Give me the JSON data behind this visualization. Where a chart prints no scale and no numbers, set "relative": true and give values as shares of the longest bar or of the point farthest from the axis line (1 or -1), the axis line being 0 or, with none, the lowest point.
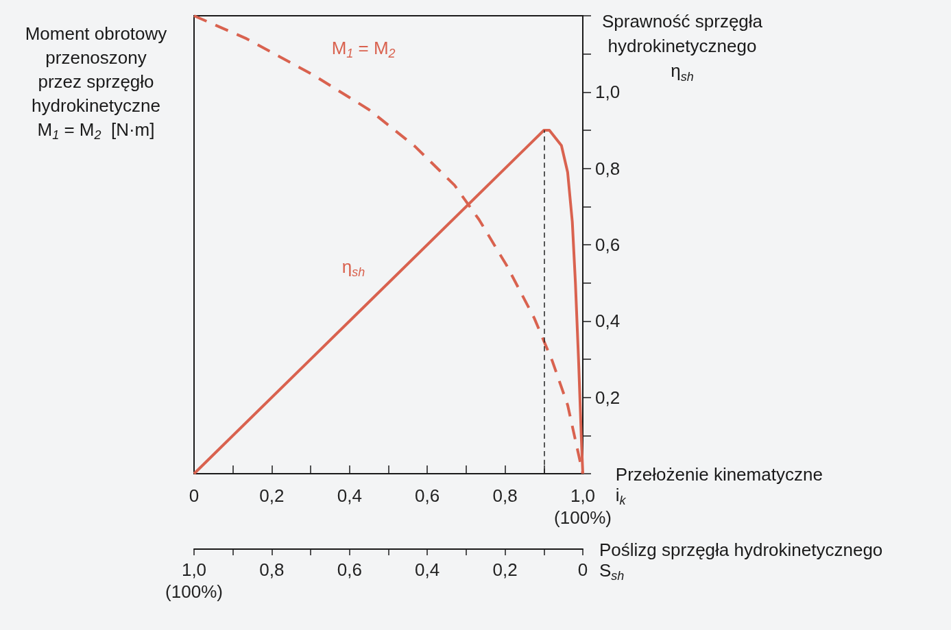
{
  "chart_data": {
    "type": "line",
    "relative": true,
    "marker": "none",
    "grid": false,
    "legend": false,
    "xlabel": "Przełożenie kinematyczne\ni$_{k}$",
    "ylabel": "Moment obrotowy\nprzenoszony\nprzez sprzęgło\nhydrokinetyczne\nM$_{1}$ = M$_{2}$  [N·m]",
    "y2label": "Sprawność sprzęgła\nhydrokinetycznego\nη$_{sh}$",
    "x2label": "Poślizg sprzęgła hydrokinetycznego\nS$_{sh}$",
    "xlim": [
      0,
      1
    ],
    "xticks": [
      0,
      {
        "value": 0.1,
        "label": null
      },
      {
        "value": 0.2,
        "label": "0,2"
      },
      {
        "value": 0.3,
        "label": null
      },
      {
        "value": 0.4,
        "label": "0,4"
      },
      {
        "value": 0.5,
        "label": null
      },
      {
        "value": 0.6,
        "label": "0,6"
      },
      {
        "value": 0.7,
        "label": null
      },
      {
        "value": 0.8,
        "label": "0,8"
      },
      {
        "value": 0.9,
        "label": null
      },
      {
        "value": 1,
        "label": "1,0\n(100%)"
      }
    ],
    "x2lim": [
      1,
      0
    ],
    "x2ticks": [
      {
        "value": 1,
        "label": "1,0\n(100%)"
      },
      {
        "value": 0.9,
        "label": null
      },
      {
        "value": 0.8,
        "label": "0,8"
      },
      {
        "value": 0.7,
        "label": null
      },
      {
        "value": 0.6,
        "label": "0,6"
      },
      {
        "value": 0.5,
        "label": null
      },
      {
        "value": 0.4,
        "label": "0,4"
      },
      {
        "value": 0.3,
        "label": null
      },
      {
        "value": 0.2,
        "label": "0,2"
      },
      {
        "value": 0.1,
        "label": null
      },
      0
    ],
    "y2lim": [
      0,
      1.2
    ],
    "y2ticks": [
      {
        "value": 0.1,
        "label": null
      },
      {
        "value": 0.2,
        "label": "0,2"
      },
      {
        "value": 0.3,
        "label": null
      },
      {
        "value": 0.4,
        "label": "0,4"
      },
      {
        "value": 0.5,
        "label": null
      },
      {
        "value": 0.6,
        "label": "0,6"
      },
      {
        "value": 0.7,
        "label": null
      },
      {
        "value": 0.8,
        "label": "0,8"
      },
      {
        "value": 0.9,
        "label": null
      },
      {
        "value": 1,
        "label": "1,0"
      },
      {
        "value": 1.1,
        "label": null
      }
    ],
    "series": [
      {
        "name": "M$_{1}$ = M$_{2}$",
        "color": "#d9624f",
        "line_style": "dashed",
        "x": [
          0,
          0.135,
          0.308,
          0.45,
          0.568,
          0.67,
          0.733,
          0.804,
          0.875,
          0.922,
          0.961,
          1
        ],
        "values": [
          1,
          0.95,
          0.87,
          0.795,
          0.715,
          0.63,
          0.555,
          0.455,
          0.34,
          0.245,
          0.15,
          0
        ]
      },
      {
        "name": "η$_{sh}$",
        "color": "#d9624f",
        "axis": "y2",
        "line_style": "solid",
        "x": [
          0,
          0.41,
          0.9,
          0.914,
          0.945,
          0.961,
          0.973,
          0.981,
          0.989,
          0.996,
          1
        ],
        "values": [
          0,
          0.41,
          0.9,
          0.9,
          0.86,
          0.79,
          0.66,
          0.5,
          0.3,
          0.1,
          0
        ]
      }
    ],
    "ref_lines": [
      {
        "axis": "x",
        "value": 0.9,
        "color": "#222222",
        "line_style": "dashed"
      }
    ]
  }
}
